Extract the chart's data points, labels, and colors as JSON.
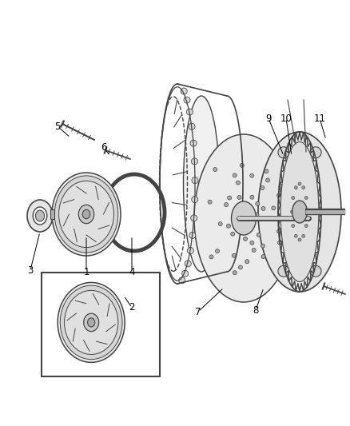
{
  "background_color": "#ffffff",
  "fig_width": 4.38,
  "fig_height": 5.33,
  "dpi": 100,
  "outline_color": "#444444",
  "light_gray": "#cccccc",
  "mid_gray": "#999999",
  "dark_gray": "#555555"
}
